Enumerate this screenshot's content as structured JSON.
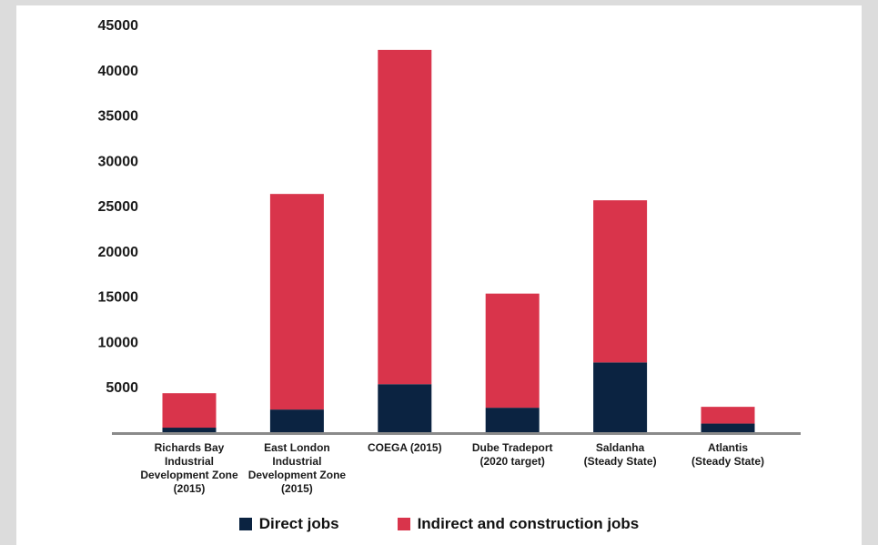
{
  "chart_data": {
    "type": "bar",
    "stacked": true,
    "categories": [
      "Richards Bay Industrial Development Zone (2015)",
      "East London Industrial Development Zone (2015)",
      "COEGA (2015)",
      "Dube Tradeport (2020 target)",
      "Saldanha (Steady State)",
      "Atlantis (Steady State)"
    ],
    "category_lines": [
      [
        "Richards Bay",
        "Industrial",
        "Development Zone",
        "(2015)"
      ],
      [
        "East London",
        "Industrial",
        "Development Zone",
        "(2015)"
      ],
      [
        "COEGA (2015)"
      ],
      [
        "Dube Tradeport",
        "(2020 target)"
      ],
      [
        "Saldanha",
        "(Steady State)"
      ],
      [
        "Atlantis",
        "(Steady State)"
      ]
    ],
    "series": [
      {
        "name": "Direct jobs",
        "color": "#0b2341",
        "values": [
          500,
          2500,
          5300,
          2700,
          7700,
          950
        ]
      },
      {
        "name": "Indirect and construction jobs",
        "color": "#d9344b",
        "values": [
          3800,
          23800,
          36900,
          12600,
          17900,
          1850
        ]
      }
    ],
    "yticks": [
      5000,
      10000,
      15000,
      20000,
      25000,
      30000,
      35000,
      40000,
      45000
    ],
    "ylim": [
      0,
      45000
    ],
    "grid": false,
    "legend_position": "bottom",
    "axis_color": "#8a8a8a"
  }
}
